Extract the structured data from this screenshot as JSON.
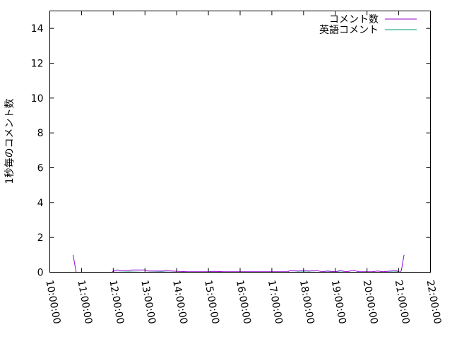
{
  "chart_data": {
    "type": "line",
    "title": "",
    "xlabel": "",
    "ylabel": "1秒毎のコメント数",
    "xlim": [
      "10:00:00",
      "22:00:00"
    ],
    "ylim": [
      0,
      15
    ],
    "x_ticks": [
      "10:00:00",
      "11:00:00",
      "12:00:00",
      "13:00:00",
      "14:00:00",
      "15:00:00",
      "16:00:00",
      "17:00:00",
      "18:00:00",
      "19:00:00",
      "20:00:00",
      "21:00:00",
      "22:00:00"
    ],
    "y_ticks": [
      0,
      2,
      4,
      6,
      8,
      10,
      12,
      14
    ],
    "grid": false,
    "legend_position": "top-right",
    "series": [
      {
        "name": "コメント数",
        "color": "#9400d3",
        "points": [
          [
            "10:44:00",
            1
          ],
          [
            "10:50:00",
            0
          ],
          null,
          [
            "11:57:00",
            0
          ],
          [
            "12:04:00",
            0.1
          ],
          [
            "12:08:00",
            0.13
          ],
          [
            "12:15:00",
            0.1
          ],
          [
            "12:30:00",
            0.1
          ],
          [
            "12:35:00",
            0.13
          ],
          [
            "13:00:00",
            0.13
          ],
          [
            "13:05:00",
            0.07
          ],
          [
            "13:35:00",
            0.07
          ],
          [
            "13:40:00",
            0.1
          ],
          [
            "13:50:00",
            0.07
          ],
          [
            "14:20:00",
            0.03
          ],
          [
            "15:00:00",
            0.03
          ],
          [
            "15:10:00",
            0.05
          ],
          [
            "15:30:00",
            0.03
          ],
          [
            "17:30:00",
            0.03
          ],
          [
            "17:35:00",
            0.1
          ],
          [
            "17:50:00",
            0.07
          ],
          [
            "18:00:00",
            0.1
          ],
          [
            "18:10:00",
            0.07
          ],
          [
            "18:25:00",
            0.1
          ],
          [
            "18:35:00",
            0.03
          ],
          [
            "18:45:00",
            0.07
          ],
          [
            "19:00:00",
            0.03
          ],
          [
            "19:10:00",
            0.1
          ],
          [
            "19:20:00",
            0.03
          ],
          [
            "19:35:00",
            0.1
          ],
          [
            "19:45:00",
            0.03
          ],
          [
            "20:10:00",
            0.03
          ],
          [
            "20:20:00",
            0.07
          ],
          [
            "20:30:00",
            0.03
          ],
          [
            "20:45:00",
            0.07
          ],
          [
            "20:55:00",
            0.1
          ],
          [
            "21:00:00",
            0.03
          ],
          [
            "21:03:00",
            0
          ],
          [
            "21:05:00",
            0.1
          ],
          [
            "21:10:00",
            1
          ]
        ]
      },
      {
        "name": "英語コメント",
        "color": "#009e73",
        "points": [
          [
            "11:57:00",
            0
          ],
          [
            "12:30:00",
            0.02
          ],
          [
            "13:00:00",
            0
          ],
          [
            "13:30:00",
            0.02
          ],
          [
            "14:00:00",
            0
          ],
          [
            "17:30:00",
            0
          ],
          [
            "18:00:00",
            0.02
          ],
          [
            "18:30:00",
            0
          ],
          [
            "19:00:00",
            0.02
          ],
          [
            "19:30:00",
            0
          ],
          [
            "20:30:00",
            0
          ],
          [
            "20:55:00",
            0.02
          ],
          [
            "21:05:00",
            0
          ]
        ]
      }
    ]
  }
}
